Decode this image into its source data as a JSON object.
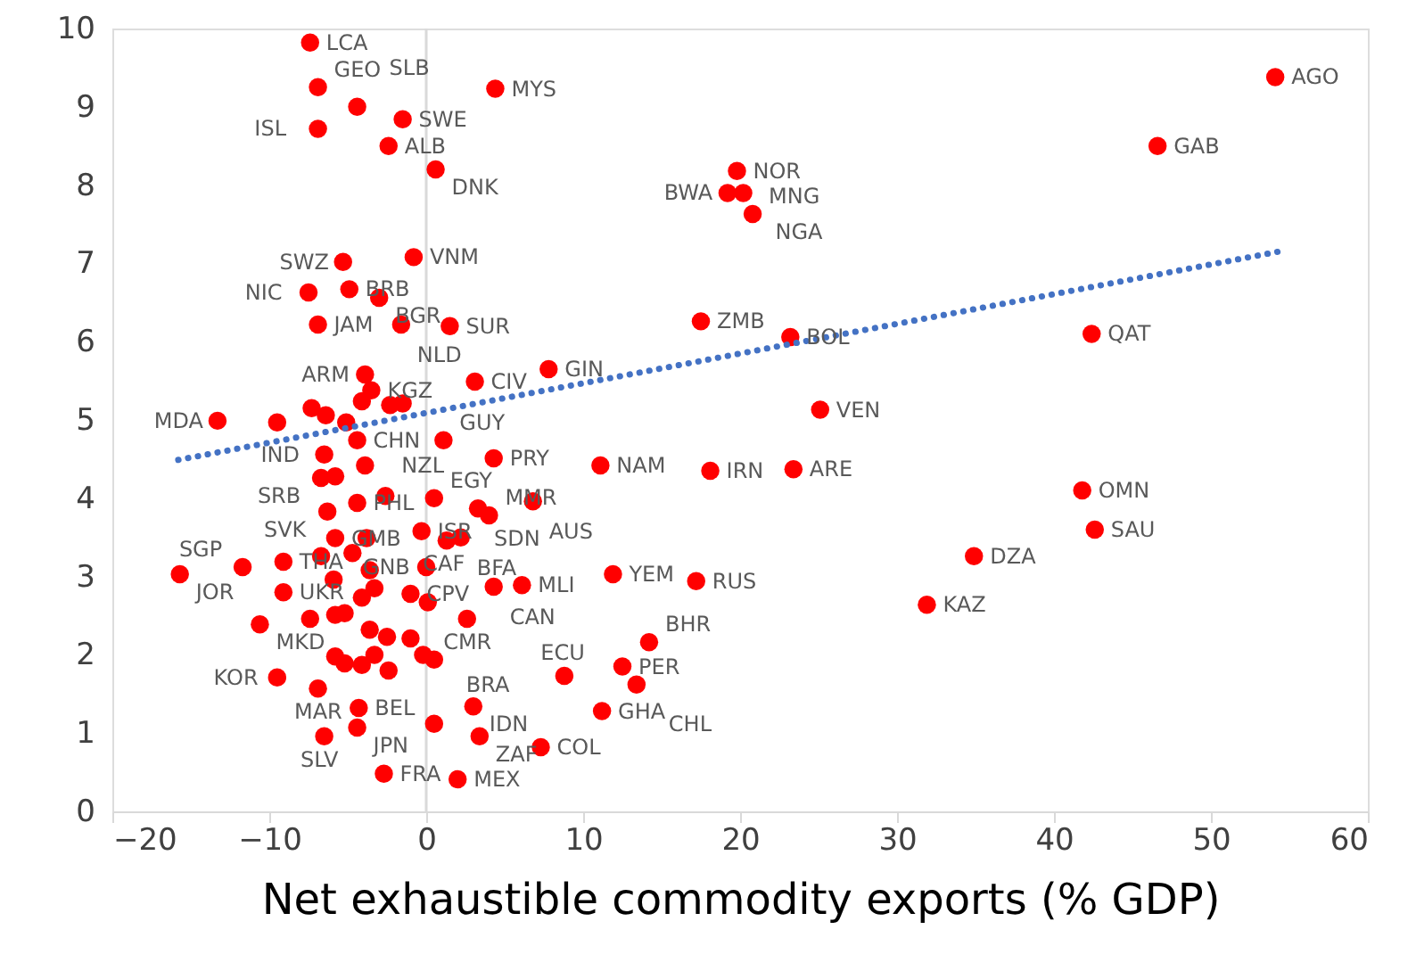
{
  "chart_data": {
    "type": "scatter",
    "xlabel": "Net exhaustible commodity exports (% GDP)",
    "xlim": [
      -20,
      60
    ],
    "xticks": [
      -20,
      -10,
      0,
      10,
      20,
      30,
      40,
      50,
      60
    ],
    "ylim": [
      0,
      10
    ],
    "yticks": [
      0,
      1,
      2,
      3,
      4,
      5,
      6,
      7,
      8,
      9,
      10
    ],
    "grid": false,
    "ref_lines": [
      {
        "axis": "x",
        "value": 0,
        "color": "#d9d9d9"
      }
    ],
    "series": [
      {
        "color": "#ff0000",
        "marker": "circle",
        "x": [
          -7.4,
          -6.9,
          -4.4,
          -1.5,
          -6.9,
          -2.4,
          0.6,
          4.4,
          -0.8,
          -5.3,
          -7.5,
          -4.9,
          -3.0,
          -6.9,
          -1.6,
          1.5,
          -3.9,
          -3.5,
          3.1,
          7.8,
          17.5,
          23.2,
          19.8,
          19.2,
          20.2,
          20.8,
          25.1,
          11.1,
          18.1,
          23.4,
          4.3,
          1.1,
          -4.4,
          -13.3,
          -6.5,
          -6.7,
          -6.3,
          -4.4,
          -2.6,
          0.5,
          3.3,
          4.0,
          6.8,
          -5.8,
          -0.3,
          1.3,
          2.2,
          -15.7,
          -11.7,
          -9.1,
          -9.1,
          0.0,
          4.3,
          6.1,
          11.9,
          17.2,
          -1.0,
          2.6,
          -10.6,
          -9.5,
          -6.9,
          -4.3,
          -4.4,
          -6.5,
          -2.7,
          2.0,
          0.5,
          3.0,
          3.4,
          7.3,
          11.2,
          8.8,
          12.5,
          13.4,
          14.2,
          34.9,
          31.9,
          41.8,
          42.6,
          42.4,
          46.6,
          54.1,
          -4.1,
          -7.3,
          -2.3,
          -1.5,
          -9.5,
          -6.4,
          -5.1,
          -3.9,
          -5.8,
          -3.8,
          -6.7,
          -4.7,
          -3.6,
          -5.9,
          -4.1,
          -3.3,
          0.1,
          -7.4,
          -5.8,
          -5.2,
          -3.6,
          -2.5,
          -1.0,
          -5.8,
          -5.2,
          -4.1,
          -3.3,
          -2.4,
          -0.2,
          0.5
        ],
        "values": [
          9.82,
          9.25,
          9.0,
          8.84,
          8.72,
          8.5,
          8.2,
          9.23,
          7.08,
          7.02,
          6.63,
          6.67,
          6.56,
          6.22,
          6.22,
          6.2,
          5.58,
          5.38,
          5.49,
          5.65,
          6.26,
          6.06,
          8.18,
          7.9,
          7.9,
          7.63,
          5.13,
          4.42,
          4.35,
          4.37,
          4.51,
          4.74,
          4.74,
          4.99,
          4.56,
          4.26,
          3.83,
          3.94,
          4.03,
          4.0,
          3.87,
          3.78,
          3.96,
          3.49,
          3.58,
          3.46,
          3.5,
          3.03,
          3.12,
          3.19,
          2.8,
          3.12,
          2.87,
          2.89,
          3.03,
          2.94,
          2.78,
          2.46,
          2.39,
          1.71,
          1.57,
          1.32,
          1.07,
          0.96,
          0.48,
          0.41,
          1.12,
          1.34,
          0.96,
          0.82,
          1.28,
          1.73,
          1.85,
          1.62,
          2.16,
          3.26,
          2.64,
          4.1,
          3.6,
          6.1,
          8.5,
          9.38,
          5.24,
          5.15,
          5.19,
          5.21,
          4.97,
          5.06,
          4.97,
          4.42,
          4.28,
          3.49,
          3.26,
          3.3,
          3.08,
          2.96,
          2.73,
          2.85,
          2.67,
          2.46,
          2.51,
          2.53,
          2.32,
          2.23,
          2.21,
          1.98,
          1.89,
          1.87,
          2.0,
          1.8,
          2.0,
          1.94
        ]
      },
      {
        "type": "line",
        "color": "#4472c4",
        "marker": "none",
        "line_style": "dotted",
        "x": [
          -15.8,
          54.3
        ],
        "values": [
          4.49,
          7.15
        ]
      }
    ],
    "annotations": [
      {
        "text": "LCA",
        "x": -7.4,
        "y": 9.82
      },
      {
        "text": "GEO",
        "x": -6.9,
        "y": 9.25
      },
      {
        "text": "SLB",
        "x": -4.4,
        "y": 9.0
      },
      {
        "text": "SWE",
        "x": -1.5,
        "y": 8.84
      },
      {
        "text": "ISL",
        "x": -6.9,
        "y": 8.72
      },
      {
        "text": "ALB",
        "x": -2.4,
        "y": 8.5
      },
      {
        "text": "DNK",
        "x": 0.6,
        "y": 8.2
      },
      {
        "text": "MYS",
        "x": 4.4,
        "y": 9.23
      },
      {
        "text": "VNM",
        "x": -0.8,
        "y": 7.08
      },
      {
        "text": "SWZ",
        "x": -5.3,
        "y": 7.02
      },
      {
        "text": "NIC",
        "x": -7.5,
        "y": 6.63
      },
      {
        "text": "BRB",
        "x": -4.9,
        "y": 6.67
      },
      {
        "text": "BGR",
        "x": -3.0,
        "y": 6.56
      },
      {
        "text": "JAM",
        "x": -6.9,
        "y": 6.22
      },
      {
        "text": "NLD",
        "x": -1.6,
        "y": 6.22
      },
      {
        "text": "SUR",
        "x": 1.5,
        "y": 6.2
      },
      {
        "text": "ARM",
        "x": -3.9,
        "y": 5.58
      },
      {
        "text": "KGZ",
        "x": -3.5,
        "y": 5.38
      },
      {
        "text": "CIV",
        "x": 3.1,
        "y": 5.49
      },
      {
        "text": "GIN",
        "x": 7.8,
        "y": 5.65
      },
      {
        "text": "ZMB",
        "x": 17.5,
        "y": 6.26
      },
      {
        "text": "BOL",
        "x": 23.2,
        "y": 6.06
      },
      {
        "text": "NOR",
        "x": 19.8,
        "y": 8.18
      },
      {
        "text": "BWA",
        "x": 19.2,
        "y": 7.9
      },
      {
        "text": "NGA",
        "x": 20.2,
        "y": 7.9
      },
      {
        "text": "MNG",
        "x": 20.8,
        "y": 7.63
      },
      {
        "text": "VEN",
        "x": 25.1,
        "y": 5.13
      },
      {
        "text": "NAM",
        "x": 11.1,
        "y": 4.42
      },
      {
        "text": "IRN",
        "x": 18.1,
        "y": 4.35
      },
      {
        "text": "ARE",
        "x": 23.4,
        "y": 4.37
      },
      {
        "text": "PRY",
        "x": 4.3,
        "y": 4.51
      },
      {
        "text": "GUY",
        "x": 1.1,
        "y": 4.74
      },
      {
        "text": "CHN",
        "x": -4.4,
        "y": 4.74
      },
      {
        "text": "MDA",
        "x": -13.3,
        "y": 4.99
      },
      {
        "text": "IND",
        "x": -6.5,
        "y": 4.56
      },
      {
        "text": "SRB",
        "x": -6.7,
        "y": 4.26
      },
      {
        "text": "SVK",
        "x": -6.3,
        "y": 3.83
      },
      {
        "text": "PHL",
        "x": -4.4,
        "y": 3.94
      },
      {
        "text": "NZL",
        "x": -2.6,
        "y": 4.03
      },
      {
        "text": "EGY",
        "x": 0.5,
        "y": 4.0
      },
      {
        "text": "SDN",
        "x": 3.3,
        "y": 3.87
      },
      {
        "text": "MMR",
        "x": 4.0,
        "y": 3.78
      },
      {
        "text": "AUS",
        "x": 6.8,
        "y": 3.96
      },
      {
        "text": "GMB",
        "x": -5.8,
        "y": 3.49
      },
      {
        "text": "ISR",
        "x": -0.3,
        "y": 3.58
      },
      {
        "text": "CAF",
        "x": 1.3,
        "y": 3.46
      },
      {
        "text": "BFA",
        "x": 2.2,
        "y": 3.5
      },
      {
        "text": "JOR",
        "x": -15.7,
        "y": 3.03
      },
      {
        "text": "SGP",
        "x": -11.7,
        "y": 3.12
      },
      {
        "text": "THA",
        "x": -9.1,
        "y": 3.19
      },
      {
        "text": "UKR",
        "x": -9.1,
        "y": 2.8
      },
      {
        "text": "GNB",
        "x": 0.0,
        "y": 3.12
      },
      {
        "text": "CAN",
        "x": 4.3,
        "y": 2.87
      },
      {
        "text": "MLI",
        "x": 6.1,
        "y": 2.89
      },
      {
        "text": "YEM",
        "x": 11.9,
        "y": 3.03
      },
      {
        "text": "RUS",
        "x": 17.2,
        "y": 2.94
      },
      {
        "text": "CPV",
        "x": -1.0,
        "y": 2.78
      },
      {
        "text": "CMR",
        "x": 2.6,
        "y": 2.46
      },
      {
        "text": "MKD",
        "x": -10.6,
        "y": 2.39
      },
      {
        "text": "KOR",
        "x": -9.5,
        "y": 1.71
      },
      {
        "text": "MAR",
        "x": -6.9,
        "y": 1.57
      },
      {
        "text": "BEL",
        "x": -4.3,
        "y": 1.32
      },
      {
        "text": "JPN",
        "x": -4.4,
        "y": 1.07
      },
      {
        "text": "SLV",
        "x": -6.5,
        "y": 0.96
      },
      {
        "text": "FRA",
        "x": -2.7,
        "y": 0.48
      },
      {
        "text": "MEX",
        "x": 2.0,
        "y": 0.41
      },
      {
        "text": "BRA",
        "x": 0.5,
        "y": 1.12
      },
      {
        "text": "IDN",
        "x": 3.0,
        "y": 1.34
      },
      {
        "text": "ZAF",
        "x": 3.4,
        "y": 0.96
      },
      {
        "text": "COL",
        "x": 7.3,
        "y": 0.82
      },
      {
        "text": "GHA",
        "x": 11.2,
        "y": 1.28
      },
      {
        "text": "ECU",
        "x": 8.8,
        "y": 1.73
      },
      {
        "text": "PER",
        "x": 12.5,
        "y": 1.85
      },
      {
        "text": "CHL",
        "x": 13.4,
        "y": 1.62
      },
      {
        "text": "BHR",
        "x": 14.2,
        "y": 2.16
      },
      {
        "text": "DZA",
        "x": 34.9,
        "y": 3.26
      },
      {
        "text": "KAZ",
        "x": 31.9,
        "y": 2.64
      },
      {
        "text": "OMN",
        "x": 41.8,
        "y": 4.1
      },
      {
        "text": "SAU",
        "x": 42.6,
        "y": 3.6
      },
      {
        "text": "QAT",
        "x": 42.4,
        "y": 6.1
      },
      {
        "text": "GAB",
        "x": 46.6,
        "y": 8.5
      },
      {
        "text": "AGO",
        "x": 54.1,
        "y": 9.38
      }
    ]
  }
}
